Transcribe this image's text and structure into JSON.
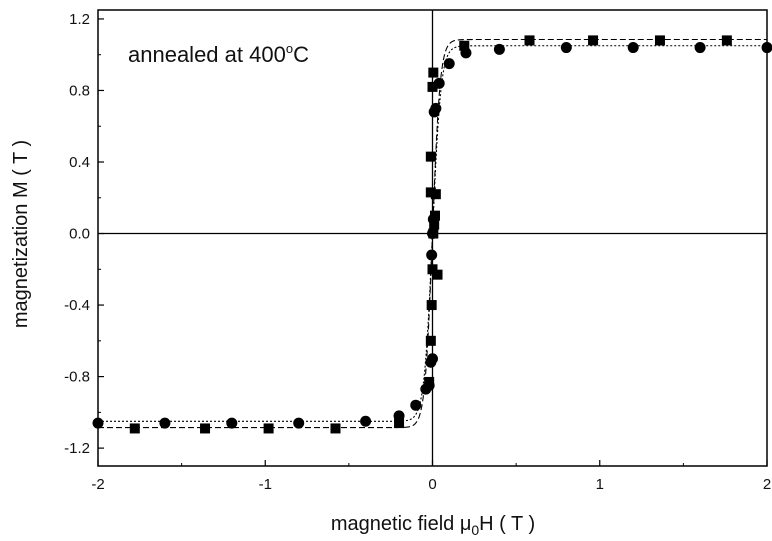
{
  "chart_data": {
    "type": "scatter",
    "title": "",
    "annotation": {
      "text": "annealed at 400",
      "degree": "o",
      "unit": "C"
    },
    "xlabel": {
      "text": "magnetic field ",
      "mu": "μ",
      "sub": "0",
      "rest": "H ( T )"
    },
    "ylabel": "magnetization M ( T )",
    "xlim": [
      -2,
      2
    ],
    "ylim": [
      -1.3,
      1.25
    ],
    "xticks": [
      -2,
      -1,
      0,
      1,
      2
    ],
    "xtick_labels": [
      "-2",
      "-1",
      "0",
      "1",
      "2"
    ],
    "yticks": [
      -1.2,
      -0.8,
      -0.4,
      0.0,
      0.4,
      0.8,
      1.2
    ],
    "ytick_labels": [
      "-1.2",
      "-0.8",
      "-0.4",
      "0.0",
      "0.4",
      "0.8",
      "1.2"
    ],
    "grid": false,
    "series": [
      {
        "marker": "square",
        "color": "#000000",
        "points": [
          [
            -1.78,
            -1.09
          ],
          [
            -1.36,
            -1.09
          ],
          [
            -0.98,
            -1.09
          ],
          [
            -0.58,
            -1.09
          ],
          [
            -0.2,
            -1.06
          ],
          [
            -0.02,
            -0.83
          ],
          [
            -0.01,
            -0.6
          ],
          [
            -0.005,
            -0.4
          ],
          [
            0.0,
            -0.2
          ],
          [
            0.005,
            0.0
          ],
          [
            0.01,
            0.05
          ],
          [
            0.015,
            0.1
          ],
          [
            0.02,
            0.22
          ],
          [
            -0.01,
            0.23
          ],
          [
            -0.01,
            0.43
          ],
          [
            0.0,
            0.82
          ],
          [
            0.005,
            0.9
          ],
          [
            0.03,
            -0.23
          ],
          [
            0.19,
            1.05
          ],
          [
            0.58,
            1.08
          ],
          [
            0.96,
            1.08
          ],
          [
            1.36,
            1.08
          ],
          [
            1.76,
            1.08
          ]
        ]
      },
      {
        "marker": "circle",
        "color": "#000000",
        "points": [
          [
            -2.0,
            -1.06
          ],
          [
            -1.6,
            -1.06
          ],
          [
            -1.2,
            -1.06
          ],
          [
            -0.8,
            -1.06
          ],
          [
            -0.4,
            -1.05
          ],
          [
            -0.2,
            -1.02
          ],
          [
            -0.1,
            -0.96
          ],
          [
            -0.04,
            -0.87
          ],
          [
            -0.02,
            -0.85
          ],
          [
            -0.01,
            -0.72
          ],
          [
            0.0,
            -0.7
          ],
          [
            -0.005,
            -0.12
          ],
          [
            0.0,
            0.0
          ],
          [
            0.005,
            0.08
          ],
          [
            0.01,
            0.68
          ],
          [
            0.02,
            0.7
          ],
          [
            0.04,
            0.84
          ],
          [
            0.1,
            0.95
          ],
          [
            0.2,
            1.01
          ],
          [
            0.4,
            1.03
          ],
          [
            0.8,
            1.04
          ],
          [
            1.2,
            1.04
          ],
          [
            1.6,
            1.04
          ],
          [
            2.0,
            1.04
          ]
        ]
      }
    ],
    "fit_curves": [
      {
        "name": "square-fit",
        "xc": 0.0,
        "amplitude": 1.085,
        "width": 0.045,
        "dash": "6,3"
      },
      {
        "name": "circle-fit",
        "xc": 0.0,
        "amplitude": 1.05,
        "width": 0.05,
        "dash": "2,2"
      }
    ]
  }
}
